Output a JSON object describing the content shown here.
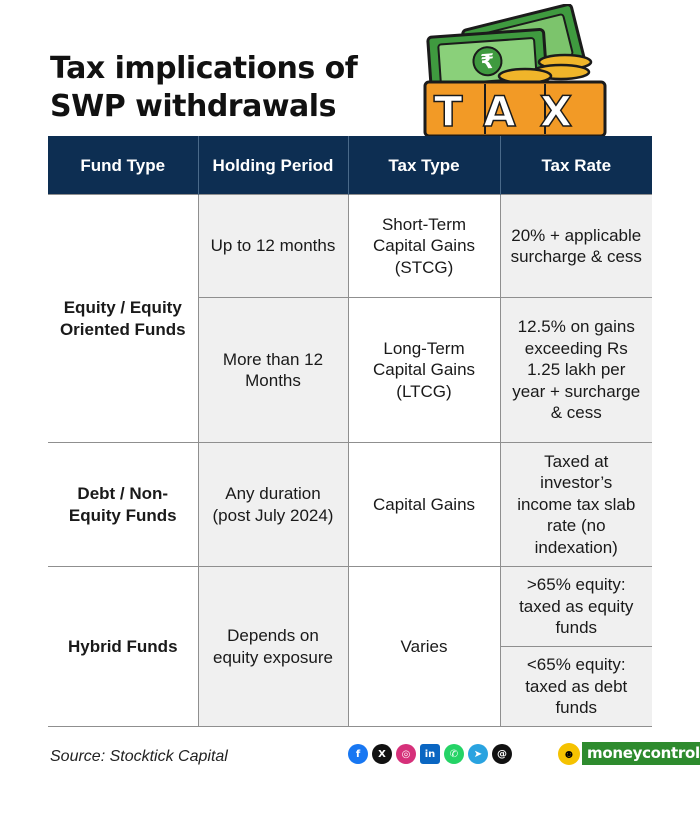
{
  "title": {
    "line1": "Tax implications of",
    "line2": "SWP withdrawals"
  },
  "illustration": {
    "stamp_text": "TAX",
    "currency_glyph": "₹",
    "icon": "money-tax-icon"
  },
  "table": {
    "headers": [
      "Fund Type",
      "Holding Period",
      "Tax Type",
      "Tax Rate"
    ],
    "rows": [
      {
        "fund": "Equity / Equity Oriented Funds",
        "periods": [
          {
            "period": "Up to 12 months",
            "type": "Short-Term Capital Gains (STCG)",
            "rate": "20% + applicable surcharge & cess"
          },
          {
            "period": "More than 12 Months",
            "type": "Long-Term Capital Gains (LTCG)",
            "rate": "12.5% on gains exceeding Rs 1.25 lakh per year + surcharge & cess"
          }
        ]
      },
      {
        "fund": "Debt / Non-Equity Funds",
        "periods": [
          {
            "period": "Any duration (post July 2024)",
            "type": "Capital Gains",
            "rate": "Taxed at investor’s income tax slab rate (no indexation)"
          }
        ]
      },
      {
        "fund": "Hybrid Funds",
        "periods": [
          {
            "period": "Depends on equity exposure",
            "type": "Varies",
            "rates": [
              ">65% equity: taxed as equity funds",
              "<65% equity: taxed as debt funds"
            ]
          }
        ]
      }
    ]
  },
  "footer": {
    "source": "Source: Stocktick Capital",
    "social_icons": [
      "facebook-icon",
      "x-icon",
      "instagram-icon",
      "linkedin-icon",
      "whatsapp-icon",
      "telegram-icon",
      "threads-icon"
    ],
    "social_glyphs": [
      "f",
      "X",
      "◎",
      "in",
      "✆",
      "➤",
      "@"
    ],
    "brand": "moneycontrol"
  },
  "colors": {
    "header_bg": "#0d2e52",
    "shade": "#f0f0f0",
    "brand_green": "#2e8b2e"
  }
}
